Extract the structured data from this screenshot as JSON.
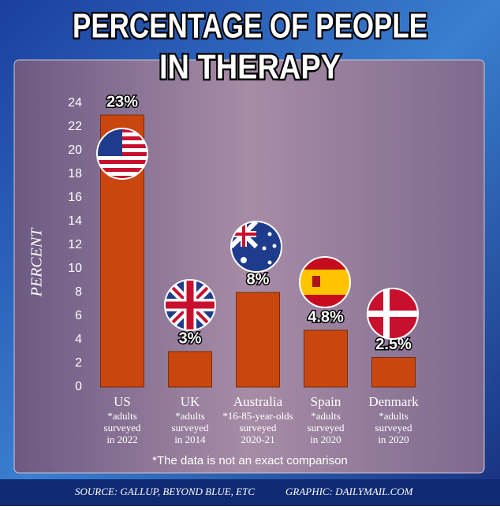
{
  "chart_data": {
    "type": "bar",
    "title": [
      "PERCENTAGE OF PEOPLE",
      "IN THERAPY"
    ],
    "y_label": "PERCENT",
    "categories": [
      "US",
      "UK",
      "Australia",
      "Spain",
      "Denmark"
    ],
    "values": [
      23,
      3,
      8,
      4.8,
      2.5
    ],
    "value_labels": [
      "23%",
      "3%",
      "8%",
      "4.8%",
      "2.5%"
    ],
    "notes": [
      [
        "*adults",
        "surveyed",
        "in 2022"
      ],
      [
        "*adults",
        "surveyed",
        "in 2014"
      ],
      [
        "*16-85-year-olds",
        "surveyed",
        "2020-21"
      ],
      [
        "*adults",
        "surveyed",
        "in 2020"
      ],
      [
        "*adults",
        "surveyed",
        "in 2020"
      ]
    ],
    "color": "#c9470f",
    "ylim": [
      0,
      24
    ],
    "yticks": [
      0,
      2,
      4,
      6,
      8,
      10,
      12,
      14,
      16,
      18,
      20,
      22,
      24
    ],
    "footnote": "*The data is not an exact comparison",
    "source": "SOURCE: GALLUP, BEYOND BLUE, ETC",
    "credit": "GRAPHIC: DAILYMAIL.COM"
  }
}
